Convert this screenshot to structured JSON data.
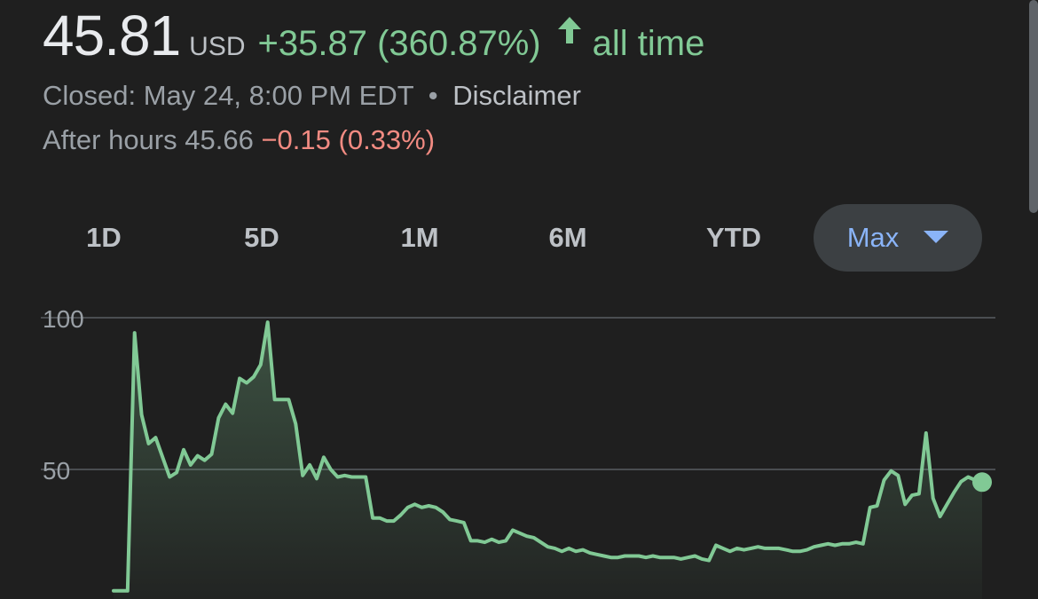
{
  "quote": {
    "price": "45.81",
    "currency": "USD",
    "change": "+35.87 (360.87%)",
    "period": "all time",
    "status_prefix": "Closed: May 24, 8:00 PM EDT",
    "separator": "•",
    "disclaimer": "Disclaimer",
    "after_hours_label": "After hours 45.66",
    "after_hours_change": "−0.15 (0.33%)"
  },
  "colors": {
    "positive": "#81c995",
    "negative": "#f28b82",
    "accent": "#8ab4f8",
    "background": "#1f1f1f"
  },
  "range_tabs": [
    {
      "label": "1D"
    },
    {
      "label": "5D"
    },
    {
      "label": "1M"
    },
    {
      "label": "6M"
    },
    {
      "label": "YTD"
    },
    {
      "label": "Max",
      "selected": true
    }
  ],
  "chart_data": {
    "type": "area",
    "title": "",
    "xlabel": "",
    "ylabel": "",
    "y_ticks": [
      "100",
      "50"
    ],
    "ylim_visible": [
      10,
      105
    ],
    "grid": true,
    "series": [
      {
        "values": [
          10.0,
          10.0,
          10.0,
          95.0,
          68.0,
          58.5,
          60.5,
          54.0,
          47.5,
          49.0,
          56.5,
          51.5,
          54.5,
          53.0,
          55.0,
          67.0,
          71.5,
          68.5,
          80.0,
          78.5,
          80.5,
          84.5,
          98.5,
          73.0,
          73.0,
          73.0,
          65.0,
          48.0,
          51.5,
          47.0,
          54.0,
          50.0,
          47.5,
          48.0,
          47.5,
          47.5,
          47.5,
          34.0,
          34.0,
          33.0,
          33.0,
          35.0,
          37.5,
          38.5,
          37.5,
          38.0,
          37.5,
          36.0,
          33.5,
          33.0,
          32.5,
          26.5,
          26.5,
          26.0,
          27.0,
          26.0,
          26.5,
          30.0,
          29.0,
          28.0,
          27.5,
          26.0,
          24.5,
          24.0,
          23.0,
          24.0,
          23.0,
          23.5,
          22.5,
          22.0,
          21.5,
          21.0,
          21.0,
          21.5,
          21.5,
          21.5,
          21.0,
          21.5,
          21.0,
          21.0,
          21.0,
          20.5,
          21.0,
          21.5,
          20.5,
          20.0,
          25.0,
          24.0,
          23.0,
          24.0,
          23.5,
          24.0,
          24.5,
          24.0,
          24.0,
          24.0,
          23.5,
          23.0,
          23.0,
          23.5,
          24.5,
          25.0,
          25.5,
          25.0,
          25.5,
          25.5,
          26.0,
          25.5,
          37.5,
          38.0,
          46.5,
          49.5,
          48.0,
          38.5,
          41.5,
          42.0,
          62.0,
          40.5,
          34.5,
          38.5,
          42.5,
          46.0,
          47.5,
          46.5,
          45.81
        ]
      }
    ],
    "last_value": 45.81
  }
}
